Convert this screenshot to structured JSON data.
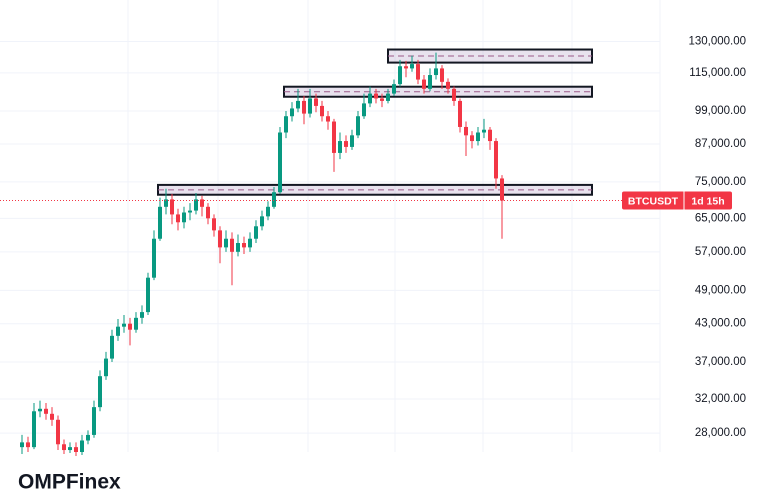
{
  "chart_data": {
    "type": "candlestick",
    "symbol": "BTCUSDT",
    "countdown": "1d 15h",
    "brand": "OMPFinex",
    "log_scale": true,
    "grid": true,
    "up_color": "#089981",
    "down_color": "#f23645",
    "ylim": [
      26000,
      153000
    ],
    "yticks": [
      {
        "value": 28000,
        "label": "28,000.00"
      },
      {
        "value": 32000,
        "label": "32,000.00"
      },
      {
        "value": 37000,
        "label": "37,000.00"
      },
      {
        "value": 43000,
        "label": "43,000.00"
      },
      {
        "value": 49000,
        "label": "49,000.00"
      },
      {
        "value": 57000,
        "label": "57,000.00"
      },
      {
        "value": 65000,
        "label": "65,000.00"
      },
      {
        "value": 75000,
        "label": "75,000.00"
      },
      {
        "value": 87000,
        "label": "87,000.00"
      },
      {
        "value": 99000,
        "label": "99,000.00"
      },
      {
        "value": 115000,
        "label": "115,000.00"
      },
      {
        "value": 130000,
        "label": "130,000.00"
      }
    ],
    "zones": [
      {
        "low": 119700,
        "high": 126000
      },
      {
        "low": 104700,
        "high": 108900
      },
      {
        "low": 71300,
        "high": 74100
      }
    ],
    "open": [
      26500,
      27000,
      26500,
      30500,
      30800,
      30200,
      29500,
      26800,
      26200,
      26500,
      26000,
      27200,
      27800,
      31000,
      35000,
      37500,
      41000,
      42500,
      43000,
      42000,
      44000,
      45000,
      51500,
      60000,
      68000,
      70000,
      66000,
      64000,
      66500,
      67000,
      70000,
      68000,
      65000,
      62000,
      58000,
      60000,
      57000,
      59000,
      58000,
      60000,
      63000,
      65500,
      68000,
      72000,
      91000,
      97000,
      100000,
      103000,
      98000,
      104000,
      101000,
      97000,
      95000,
      84000,
      88000,
      86000,
      90000,
      97000,
      102000,
      106000,
      104000,
      103000,
      106000,
      110000,
      118000,
      117000,
      119000,
      112000,
      108000,
      114000,
      117000,
      111000,
      108000,
      103000,
      93000,
      90000,
      88000,
      91000,
      92000,
      88000,
      76000
    ],
    "high": [
      27800,
      27600,
      31500,
      31800,
      31500,
      31000,
      30000,
      27300,
      27000,
      27000,
      27800,
      28300,
      31800,
      35800,
      38500,
      42000,
      43800,
      44500,
      44000,
      45000,
      46200,
      52500,
      62000,
      70500,
      73000,
      71500,
      67500,
      68000,
      69000,
      71800,
      71000,
      69000,
      66000,
      63000,
      62000,
      61500,
      61000,
      60500,
      61500,
      64500,
      67000,
      69500,
      73500,
      93000,
      99000,
      102500,
      108000,
      105000,
      108000,
      106000,
      103000,
      99000,
      96000,
      91000,
      90000,
      92000,
      99000,
      106000,
      109000,
      108000,
      106000,
      108000,
      112000,
      121000,
      120500,
      123000,
      121000,
      114000,
      117000,
      124500,
      118500,
      112500,
      109000,
      104000,
      95000,
      91500,
      93000,
      96000,
      93000,
      89000,
      77000
    ],
    "low": [
      25800,
      26000,
      26300,
      29800,
      29500,
      28800,
      26200,
      25800,
      25900,
      25600,
      25700,
      26800,
      27500,
      30500,
      34500,
      37000,
      40200,
      41500,
      39500,
      41500,
      43000,
      44500,
      51000,
      59500,
      66000,
      63500,
      62000,
      62500,
      64500,
      66000,
      65500,
      63500,
      60500,
      54500,
      57000,
      50000,
      56000,
      56500,
      57000,
      59000,
      62000,
      64500,
      67500,
      71500,
      89000,
      95000,
      98500,
      94000,
      96500,
      98500,
      95000,
      92000,
      78000,
      82000,
      84000,
      85000,
      89000,
      96000,
      100500,
      102000,
      100500,
      102000,
      105000,
      109000,
      113000,
      115500,
      110000,
      106000,
      107000,
      112000,
      108000,
      106000,
      101000,
      91000,
      83000,
      85500,
      86500,
      89000,
      85000,
      73000,
      60000
    ],
    "close": [
      27000,
      26500,
      30500,
      30800,
      30200,
      29500,
      26800,
      26200,
      26500,
      26000,
      27200,
      27800,
      31000,
      35000,
      37500,
      41000,
      42500,
      43000,
      42000,
      44000,
      45000,
      51500,
      60000,
      68000,
      70000,
      66000,
      64000,
      66500,
      67000,
      70000,
      68000,
      65000,
      62000,
      58000,
      60000,
      57000,
      59000,
      58000,
      60000,
      63000,
      65500,
      68000,
      72000,
      91000,
      97000,
      100000,
      103000,
      98000,
      104000,
      101000,
      97000,
      95000,
      84000,
      88000,
      86000,
      90000,
      97000,
      102000,
      106000,
      104000,
      103000,
      106000,
      110000,
      118000,
      117000,
      119000,
      112000,
      108000,
      114000,
      117000,
      111000,
      108000,
      103000,
      93000,
      90000,
      88000,
      91000,
      92000,
      88000,
      76000,
      69700
    ]
  }
}
